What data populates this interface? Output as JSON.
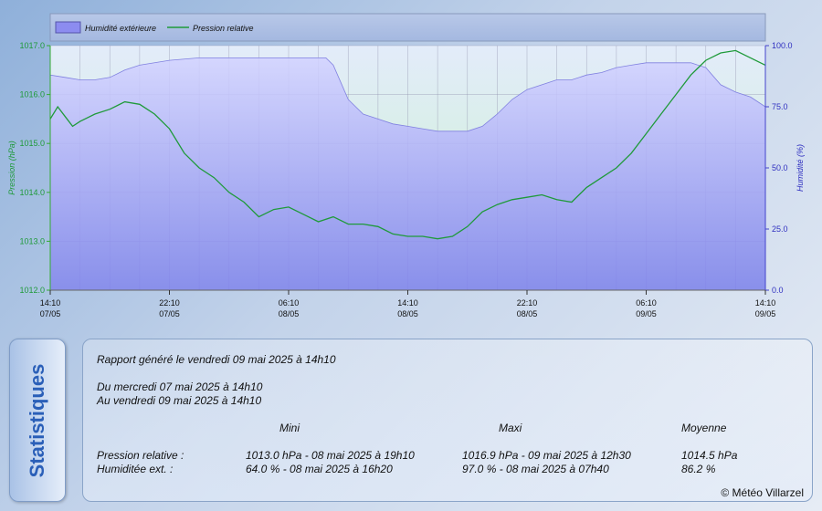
{
  "chart_data": {
    "type": "area+line",
    "legend": {
      "position": "top",
      "items": [
        "Humidité extérieure",
        "Pression relative"
      ]
    },
    "legend_colors": {
      "area": "#8c8cf0",
      "line": "#1f9a3a"
    },
    "grid": true,
    "left_axis": {
      "label": "Pression (hPa)",
      "range": [
        1012.0,
        1017.0
      ],
      "ticks": [
        "1012.0",
        "1013.0",
        "1014.0",
        "1015.0",
        "1016.0",
        "1017.0"
      ],
      "color": "#1f9a3a"
    },
    "right_axis": {
      "label": "Humidité (%)",
      "range": [
        0.0,
        100.0
      ],
      "ticks": [
        "0.0",
        "25.0",
        "50.0",
        "75.0",
        "100.0"
      ],
      "color": "#3030c0"
    },
    "x_range": [
      0,
      48
    ],
    "x_ticks": [
      {
        "x": 0,
        "time": "14:10",
        "date": "07/05"
      },
      {
        "x": 8,
        "time": "22:10",
        "date": "07/05"
      },
      {
        "x": 16,
        "time": "06:10",
        "date": "08/05"
      },
      {
        "x": 24,
        "time": "14:10",
        "date": "08/05"
      },
      {
        "x": 32,
        "time": "22:10",
        "date": "08/05"
      },
      {
        "x": 40,
        "time": "06:10",
        "date": "09/05"
      },
      {
        "x": 48,
        "time": "14:10",
        "date": "09/05"
      }
    ],
    "series": [
      {
        "name": "Humidité extérieure",
        "axis": "right",
        "kind": "area",
        "x": [
          0,
          1,
          2,
          3,
          4,
          5,
          6,
          8,
          10,
          12,
          14,
          16,
          17,
          18.5,
          19,
          19.5,
          20,
          21,
          22,
          23,
          24,
          25,
          26,
          27,
          28,
          29,
          30,
          31,
          32,
          33,
          34,
          35,
          36,
          37,
          38,
          39,
          40,
          41,
          42,
          43,
          44,
          45,
          46,
          47,
          48
        ],
        "values": [
          88,
          87,
          86,
          86,
          87,
          90,
          92,
          94,
          95,
          95,
          95,
          95,
          95,
          95,
          92,
          85,
          78,
          72,
          70,
          68,
          67,
          66,
          65,
          65,
          65,
          67,
          72,
          78,
          82,
          84,
          86,
          86,
          88,
          89,
          91,
          92,
          93,
          93,
          93,
          93,
          91,
          84,
          81,
          79,
          75
        ]
      },
      {
        "name": "Pression relative",
        "axis": "left",
        "kind": "line",
        "x": [
          0,
          0.5,
          1,
          1.5,
          2,
          3,
          4,
          5,
          6,
          7,
          8,
          9,
          10,
          11,
          12,
          13,
          14,
          15,
          16,
          17,
          18,
          19,
          20,
          21,
          22,
          23,
          24,
          25,
          26,
          27,
          28,
          29,
          30,
          31,
          32,
          33,
          34,
          35,
          36,
          37,
          38,
          39,
          40,
          41,
          42,
          43,
          44,
          45,
          46,
          47,
          48
        ],
        "values": [
          1015.5,
          1015.75,
          1015.55,
          1015.35,
          1015.45,
          1015.6,
          1015.7,
          1015.85,
          1015.8,
          1015.6,
          1015.3,
          1014.8,
          1014.5,
          1014.3,
          1014.0,
          1013.8,
          1013.5,
          1013.65,
          1013.7,
          1013.55,
          1013.4,
          1013.5,
          1013.35,
          1013.35,
          1013.3,
          1013.15,
          1013.1,
          1013.1,
          1013.05,
          1013.1,
          1013.3,
          1013.6,
          1013.75,
          1013.85,
          1013.9,
          1013.95,
          1013.85,
          1013.8,
          1014.1,
          1014.3,
          1014.5,
          1014.8,
          1015.2,
          1015.6,
          1016.0,
          1016.4,
          1016.7,
          1016.85,
          1016.9,
          1016.75,
          1016.6
        ]
      }
    ]
  },
  "stats": {
    "tab_label": "Statistiques",
    "report": "Rapport généré le vendredi 09 mai 2025 à 14h10",
    "from": "Du mercredi 07 mai 2025 à 14h10",
    "to": "Au vendredi 09 mai 2025 à 14h10",
    "headers": {
      "min": "Mini",
      "max": "Maxi",
      "avg": "Moyenne"
    },
    "rows": [
      {
        "label": "Pression relative :",
        "min": "1013.0 hPa - 08 mai 2025 à 19h10",
        "max": "1016.9 hPa - 09 mai 2025 à 12h30",
        "avg": "1014.5 hPa"
      },
      {
        "label": "Humiditée ext. :",
        "min": "64.0 % - 08 mai 2025 à 16h20",
        "max": "97.0 % - 08 mai 2025 à 07h40",
        "avg": "86.2 %"
      }
    ]
  },
  "copyright": "© Météo Villarzel"
}
